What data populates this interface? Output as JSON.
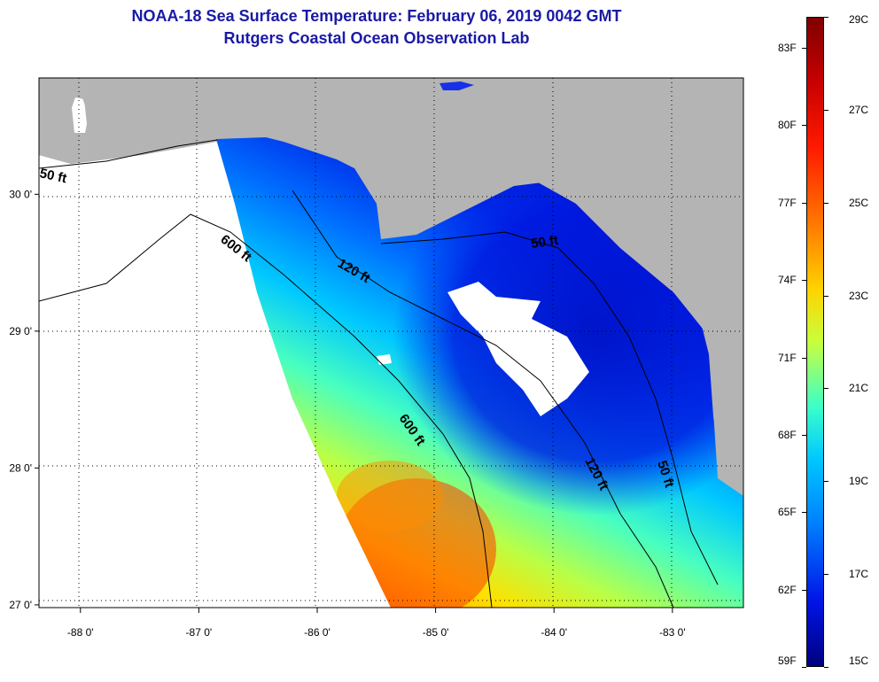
{
  "title": {
    "line1": "NOAA-18 Sea Surface Temperature:  February 06, 2019 0042 GMT",
    "line2": "Rutgers Coastal Ocean Observation Lab"
  },
  "map": {
    "lon_range": [
      -88.35,
      -82.4
    ],
    "lat_range": [
      26.98,
      30.85
    ],
    "lon_ticks": [
      {
        "value": -88,
        "label": "-88 0'"
      },
      {
        "value": -87,
        "label": "-87 0'"
      },
      {
        "value": -86,
        "label": "-86 0'"
      },
      {
        "value": -85,
        "label": "-85 0'"
      },
      {
        "value": -84,
        "label": "-84 0'"
      },
      {
        "value": -83,
        "label": "-83 0'"
      }
    ],
    "lat_ticks": [
      {
        "value": 30,
        "label": "30 0'"
      },
      {
        "value": 29,
        "label": "29 0'"
      },
      {
        "value": 28,
        "label": "28 0'"
      },
      {
        "value": 27,
        "label": "27 0'"
      }
    ],
    "contour_labels": [
      "50 ft",
      "600 ft",
      "120 ft",
      "50 ft",
      "600 ft",
      "120 ft",
      "50 ft"
    ],
    "colors": {
      "land": "#b4b4b4",
      "no_data": "#ffffff",
      "warm": "#ff3a00",
      "cold": "#0010d8"
    }
  },
  "colorbar": {
    "celsius": [
      "29C",
      "27C",
      "25C",
      "23C",
      "21C",
      "19C",
      "17C",
      "15C"
    ],
    "fahrenheit": [
      "83F",
      "80F",
      "77F",
      "74F",
      "71F",
      "68F",
      "65F",
      "62F",
      "59F"
    ]
  }
}
